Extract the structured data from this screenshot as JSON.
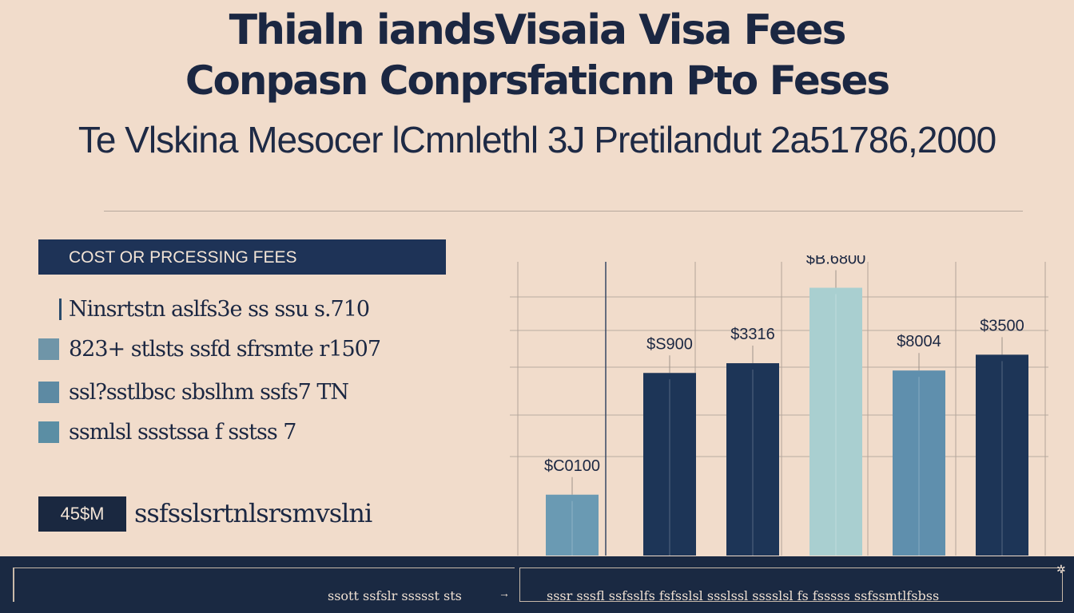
{
  "title_line1": "Thialn iandsVisaia Visa Fees",
  "title_line2": "Conpasn Conprsfaticnn Pto Feses",
  "subtitle": "Te Vlskina Mesocer lCmnlethl 3J Pretilandut 2a51786,2000",
  "panel": {
    "header": "COST OR PRCESSING FEES",
    "legend": [
      {
        "label": "Ninsrtstn aslfs3e ss ssu s.710",
        "swatch": "outline",
        "color": "#2a4b6c"
      },
      {
        "label": "823+ stlsts ssfd sfrsmte r1507",
        "swatch": "fill",
        "color": "#6f95a8"
      },
      {
        "label": "ssl?sstlbsc sbslhm ssfs7 TN",
        "swatch": "fill",
        "color": "#5d8aa3"
      },
      {
        "label": "ssmlsl ssstssa f sstss 7",
        "swatch": "fill",
        "color": "#5b8ea4"
      }
    ],
    "badge": "45$M",
    "badge_text": "ssfsslsrtnlsrsmvslni"
  },
  "chart_data": {
    "type": "bar",
    "categories": [
      "",
      "",
      "",
      "",
      "",
      ""
    ],
    "values": [
      100,
      300,
      316,
      440,
      304,
      330
    ],
    "data_labels": [
      "$C0100",
      "$S900",
      "$3316",
      "$B.6800",
      "$8004",
      "$3500"
    ],
    "colors": [
      "#6a9ab3",
      "#1d3557",
      "#1d3557",
      "#a9cfd0",
      "#5f8fad",
      "#1d3557"
    ],
    "ylim": [
      0,
      480
    ],
    "grid": true,
    "title": "",
    "xlabel": "",
    "ylabel": ""
  },
  "footer": {
    "left_text": "ssott ssfslr ssssst sts",
    "right_text": "sssr sssfl ssfsslfs fsfsslsl ssslssl sssslsl fs fsssss ssfssmtlfsbss"
  }
}
